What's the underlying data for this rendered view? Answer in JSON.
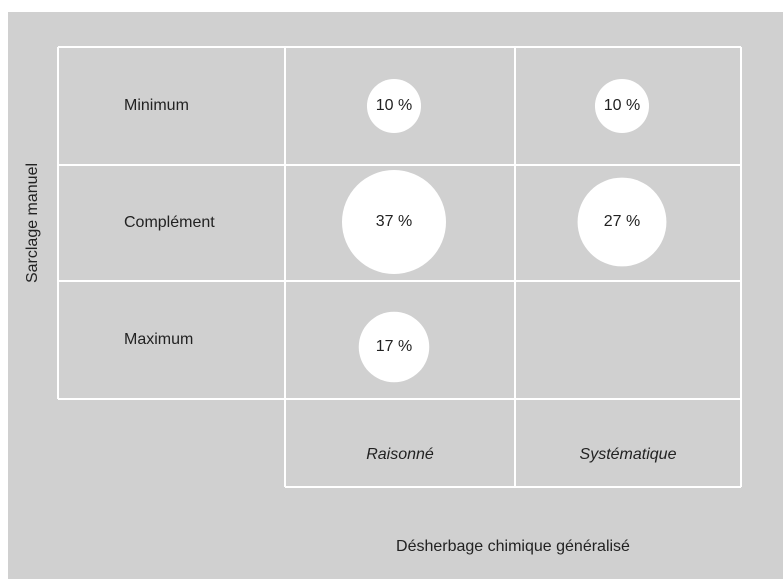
{
  "chart_data": {
    "type": "bubble",
    "y_label": "Sarclage manuel",
    "x_label": "Désherbage chimique généralisé",
    "rows": [
      "Minimum",
      "Complément",
      "Maximum"
    ],
    "columns": [
      "Raisonné",
      "Systématique"
    ],
    "values": [
      [
        10,
        10
      ],
      [
        37,
        27
      ],
      [
        17,
        null
      ]
    ],
    "value_labels": [
      [
        "10 %",
        "10 %"
      ],
      [
        "37 %",
        "27 %"
      ],
      [
        "17 %",
        null
      ]
    ],
    "color": "#ffffff"
  }
}
